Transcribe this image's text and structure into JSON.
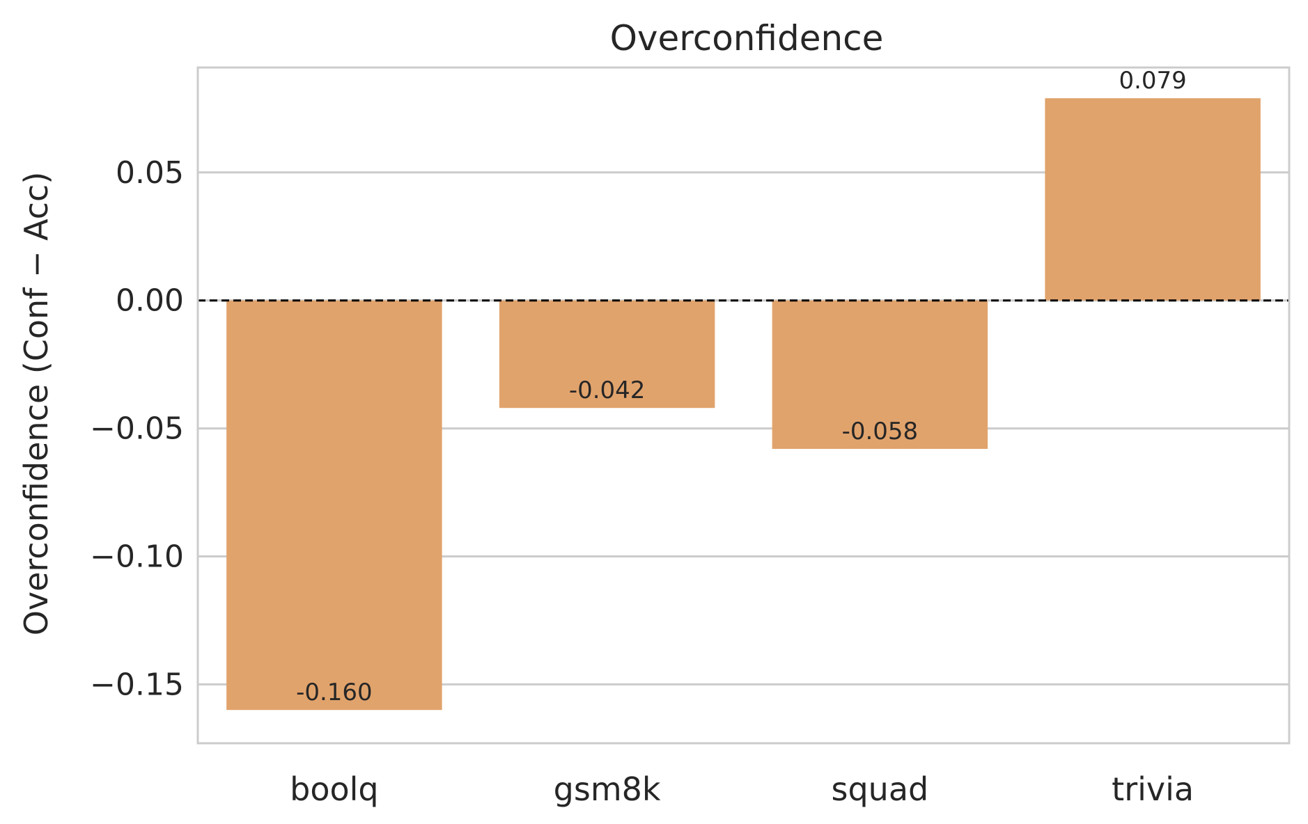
{
  "chart_data": {
    "type": "bar",
    "title": "Overconfidence",
    "xlabel": "",
    "ylabel": "Overconfidence (Conf − Acc)",
    "categories": [
      "boolq",
      "gsm8k",
      "squad",
      "trivia"
    ],
    "values": [
      -0.16,
      -0.042,
      -0.058,
      0.079
    ],
    "value_labels": [
      "-0.160",
      "-0.042",
      "-0.058",
      "0.079"
    ],
    "yticks": [
      0.05,
      0.0,
      -0.05,
      -0.1,
      -0.15
    ],
    "ytick_labels": [
      "0.05",
      "0.00",
      "−0.05",
      "−0.10",
      "−0.15"
    ],
    "ylim": [
      -0.173,
      0.091
    ],
    "reference_line": 0,
    "grid": "horizontal",
    "bar_color": "#e1a36c",
    "grid_color": "#cccccc",
    "reference_line_color": "#000000"
  }
}
